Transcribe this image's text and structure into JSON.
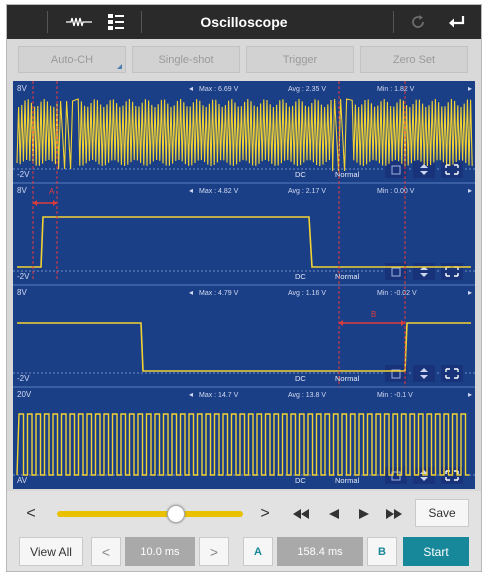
{
  "app": {
    "title": "Oscilloscope"
  },
  "toolbar": {
    "left_icon": "probe-icon",
    "settings_icon": "list-settings-icon",
    "refresh_icon": "refresh-icon",
    "back_icon": "back-arrow-icon"
  },
  "modes": {
    "auto_ch": "Auto-CH",
    "single_shot": "Single-shot",
    "trigger": "Trigger",
    "zero_set": "Zero Set"
  },
  "colors": {
    "background": "#1b3f86",
    "trace": "#f2d233",
    "cursor": "#e03b3b",
    "accent": "#17879a",
    "slider": "#e9c100"
  },
  "channels": [
    {
      "top_label": "8V",
      "bottom_label": "-2V",
      "max": "Max : 6.69 V",
      "avg": "Avg : 2.35 V",
      "min": "Min : 1.82 V",
      "coupling": "DC",
      "mode": "Normal"
    },
    {
      "top_label": "8V",
      "bottom_label": "-2V",
      "max": "Max : 4.82 V",
      "avg": "Avg : 2.17 V",
      "min": "Min : 0.00 V",
      "coupling": "DC",
      "mode": "Normal"
    },
    {
      "top_label": "8V",
      "bottom_label": "-2V",
      "max": "Max : 4.79 V",
      "avg": "Avg : 1.16 V",
      "min": "Min : -0.02 V",
      "coupling": "DC",
      "mode": "Normal"
    },
    {
      "top_label": "20V",
      "bottom_label": "AV",
      "max": "Max : 14.7 V",
      "avg": "Avg : 13.8 V",
      "min": "Min : -0.1 V",
      "coupling": "DC",
      "mode": "Normal"
    }
  ],
  "cursors": {
    "a_label": "A",
    "b_label": "B"
  },
  "controls": {
    "slider_prev": "<",
    "slider_next": ">",
    "slider_position": 0.67,
    "rewind": "◀◀",
    "step_back": "◀",
    "play": "▶",
    "fast_forward": "▶▶",
    "save": "Save",
    "view_all": "View All",
    "time_prev": "<",
    "time_value": "10.0 ms",
    "time_next": ">",
    "cursor_a": "A",
    "delta_value": "158.4 ms",
    "cursor_b": "B",
    "start": "Start"
  }
}
